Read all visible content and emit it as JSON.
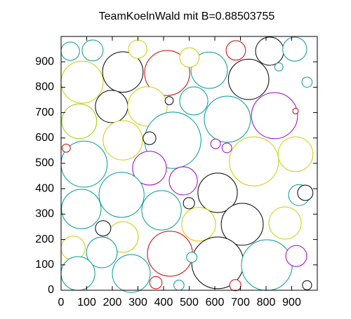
{
  "chart_data": {
    "type": "bubble",
    "title": "TeamKoelnWald mit B=0.88503755",
    "xlim": [
      0,
      1000
    ],
    "ylim": [
      0,
      1000
    ],
    "xticks": [
      0,
      100,
      200,
      300,
      400,
      500,
      600,
      700,
      800,
      900
    ],
    "yticks": [
      0,
      100,
      200,
      300,
      400,
      500,
      600,
      700,
      800,
      900
    ],
    "x": [
      241,
      414,
      578,
      732,
      814,
      82,
      197,
      337,
      518,
      649,
      833,
      71,
      241,
      436,
      753,
      915,
      90,
      345,
      477,
      611,
      236,
      392,
      79,
      707,
      537,
      874,
      241,
      425,
      611,
      803,
      159,
      47,
      66,
      274,
      929,
      918,
      123,
      36,
      299,
      912,
      501,
      682,
      422,
      345,
      953,
      499,
      164,
      603,
      647,
      915,
      510,
      370,
      460,
      850,
      960,
      680,
      20,
      960
    ],
    "y": [
      860,
      856,
      867,
      831,
      942,
      820,
      724,
      724,
      746,
      674,
      688,
      666,
      591,
      591,
      508,
      536,
      497,
      481,
      431,
      384,
      376,
      315,
      320,
      260,
      260,
      265,
      210,
      144,
      108,
      99,
      149,
      166,
      66,
      66,
      375,
      135,
      945,
      942,
      950,
      950,
      917,
      945,
      747,
      599,
      384,
      343,
      244,
      577,
      561,
      706,
      130,
      30,
      20,
      880,
      820,
      20,
      560,
      20
    ],
    "r": [
      79,
      88,
      71,
      79,
      55,
      82,
      63,
      77,
      55,
      90,
      90,
      68,
      77,
      110,
      96,
      68,
      90,
      66,
      55,
      77,
      88,
      77,
      77,
      82,
      66,
      63,
      60,
      88,
      101,
      99,
      60,
      47,
      66,
      74,
      41,
      41,
      41,
      36,
      36,
      47,
      38,
      38,
      16,
      25,
      30,
      22,
      30,
      19,
      19,
      11,
      20,
      24,
      20,
      16,
      20,
      22,
      16,
      18
    ],
    "colors": [
      "#000000",
      "#cc0000",
      "#009999",
      "#000000",
      "#000000",
      "#cccc00",
      "#000000",
      "#cccc00",
      "#009999",
      "#009999",
      "#9900cc",
      "#99cc00",
      "#cccc00",
      "#009999",
      "#cccc00",
      "#cccc00",
      "#009999",
      "#9900cc",
      "#9900cc",
      "#000000",
      "#009999",
      "#009999",
      "#009999",
      "#000000",
      "#cccc00",
      "#cccc00",
      "#cccc00",
      "#cc0000",
      "#000000",
      "#009999",
      "#009999",
      "#cccc00",
      "#009999",
      "#009999",
      "#009999",
      "#9900cc",
      "#009999",
      "#009999",
      "#cccc00",
      "#009999",
      "#cccc00",
      "#cc0000",
      "#000000",
      "#000000",
      "#000000",
      "#000000",
      "#000000",
      "#9900cc",
      "#9900cc",
      "#cc0000",
      "#009999",
      "#cc0000",
      "#009999",
      "#009999",
      "#009999",
      "#cc0000",
      "#cc0000",
      "#000000"
    ]
  }
}
